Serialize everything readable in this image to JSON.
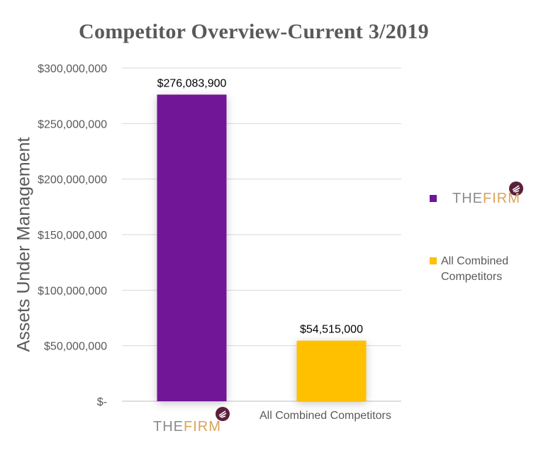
{
  "chart_data": {
    "type": "bar",
    "title": "Competitor Overview-Current 3/2019",
    "ylabel": "Assets Under Management",
    "xlabel": "",
    "categories": [
      "THEFIRM",
      "All Combined Competitors"
    ],
    "values": [
      276083900,
      54515000
    ],
    "value_labels": [
      "$276,083,900",
      "$54,515,000"
    ],
    "bar_colors": [
      "#6f1597",
      "#ffc000"
    ],
    "ylim": [
      0,
      300000000
    ],
    "yticks": [
      0,
      50000000,
      100000000,
      150000000,
      200000000,
      250000000,
      300000000
    ],
    "ytick_labels": [
      "$-",
      "$50,000,000",
      "$100,000,000",
      "$150,000,000",
      "$200,000,000",
      "$250,000,000",
      "$300,000,000"
    ],
    "grid": true,
    "legend_position": "right",
    "legend": [
      {
        "label": "THEFIRM",
        "color": "#6f1597"
      },
      {
        "label": "All Combined Competitors",
        "color": "#ffc000"
      }
    ]
  },
  "logo": {
    "part1": "THE",
    "part2": "FIRM",
    "name": "THEFIRM",
    "mark_icon": "feather-circle-icon",
    "colors": {
      "the": "#8c8c8c",
      "firm": "#d9a35b",
      "mark": "#5a1f3c"
    }
  }
}
